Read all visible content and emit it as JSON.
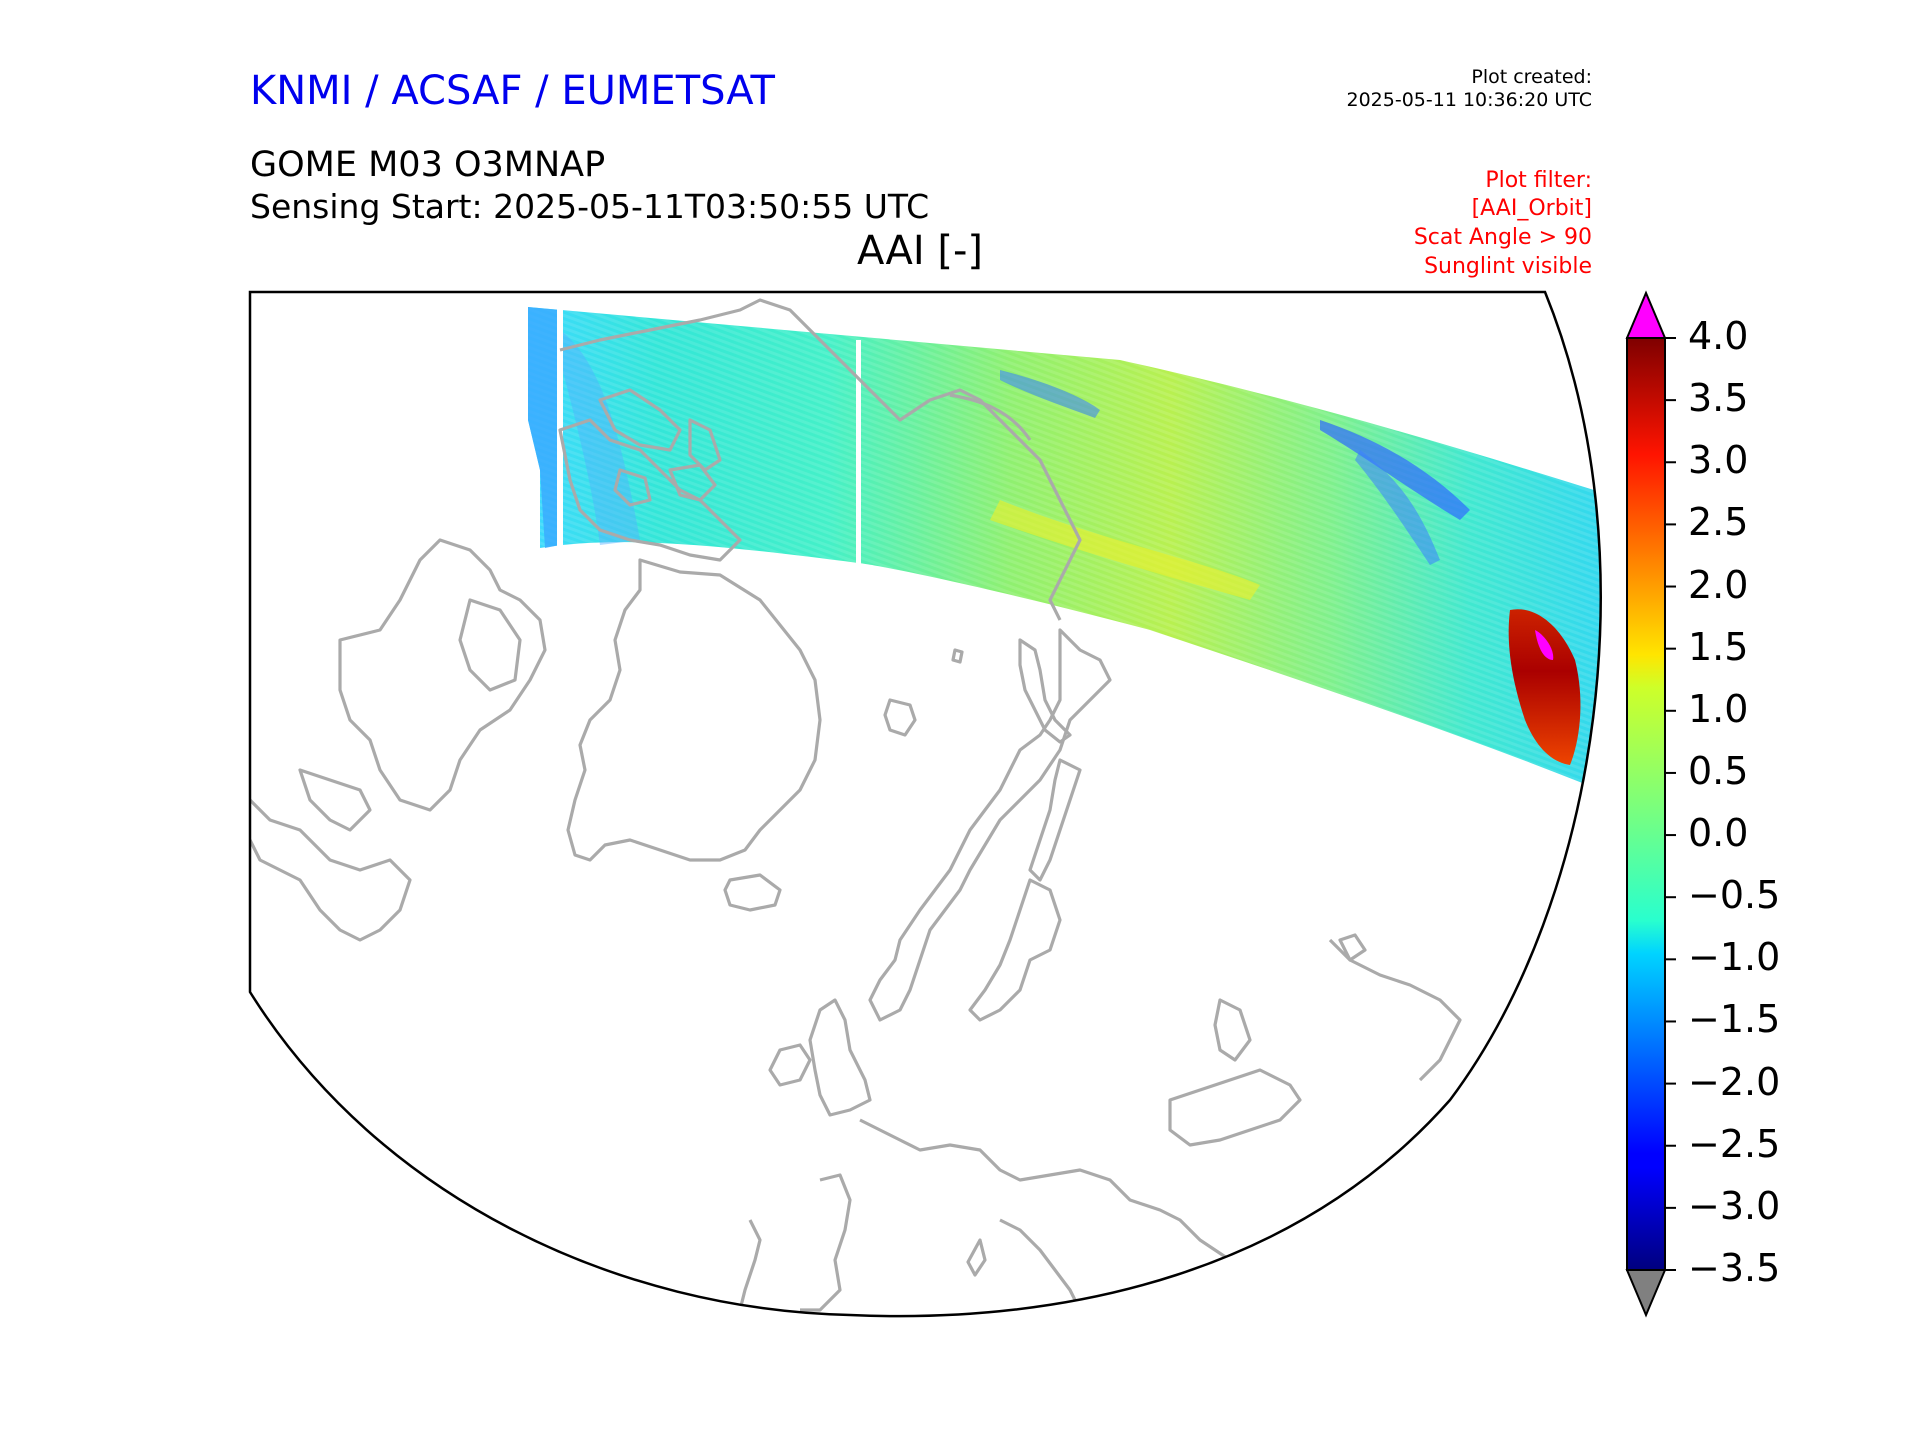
{
  "header": {
    "organization": "KNMI / ACSAF / EUMETSAT",
    "plot_created_label": "Plot created:",
    "plot_created_timestamp": "2025-05-11 10:36:20 UTC",
    "product": "GOME M03 O3MNAP",
    "sensing_start": "Sensing Start: 2025-05-11T03:50:55 UTC",
    "variable_title": "AAI [-]"
  },
  "plot_filter": [
    "Plot filter:",
    "[AAI_Orbit]",
    "Scat Angle > 90",
    "Sunglint visible"
  ],
  "colorbar": {
    "ticks": [
      "4.0",
      "3.5",
      "3.0",
      "2.5",
      "2.0",
      "1.5",
      "1.0",
      "0.5",
      "0.0",
      "−0.5",
      "−1.0",
      "−1.5",
      "−2.0",
      "−2.5",
      "−3.0",
      "−3.5"
    ],
    "min": -3.5,
    "max": 4.0,
    "over_color": "#ff00ff",
    "under_color": "#808080",
    "colormap": "jet"
  },
  "map": {
    "projection": "north polar stereographic",
    "coastline_color": "#aaaaaa",
    "swath_typical_value_range": [
      -1.0,
      1.2
    ],
    "aerosol_hotspot_value_range": [
      2.5,
      4.0
    ]
  }
}
